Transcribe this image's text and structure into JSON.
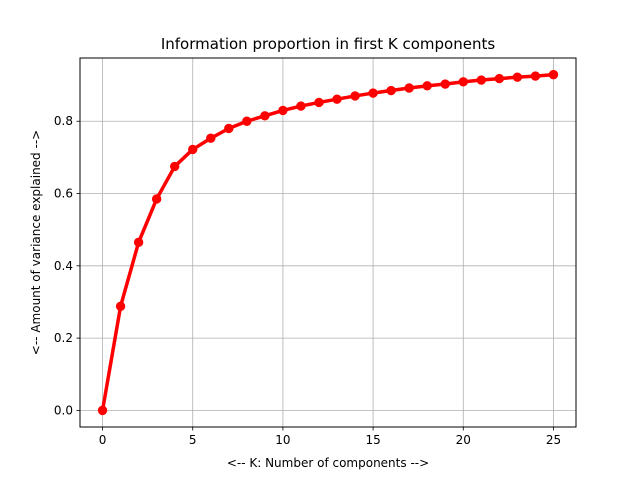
{
  "chart_data": {
    "type": "line",
    "title": "Information proportion in first K components",
    "xlabel": "<-- K: Number of components -->",
    "ylabel": "<-- Amount of variance explained -->",
    "xlim": [
      -1.25,
      26.25
    ],
    "ylim": [
      -0.046,
      0.975
    ],
    "xticks": [
      0,
      5,
      10,
      15,
      20,
      25
    ],
    "yticks": [
      0.0,
      0.2,
      0.4,
      0.6,
      0.8
    ],
    "xtick_labels": [
      "0",
      "5",
      "10",
      "15",
      "20",
      "25"
    ],
    "ytick_labels": [
      "0.0",
      "0.2",
      "0.4",
      "0.6",
      "0.8"
    ],
    "grid": true,
    "color": "#ff0000",
    "series": [
      {
        "x": [
          0,
          1,
          2,
          3,
          4,
          5,
          6,
          7,
          8,
          9,
          10,
          11,
          12,
          13,
          14,
          15,
          16,
          17,
          18,
          19,
          20,
          21,
          22,
          23,
          24,
          25
        ],
        "values": [
          0.0,
          0.288,
          0.465,
          0.585,
          0.675,
          0.722,
          0.753,
          0.78,
          0.8,
          0.815,
          0.83,
          0.842,
          0.852,
          0.861,
          0.87,
          0.878,
          0.885,
          0.892,
          0.898,
          0.903,
          0.909,
          0.914,
          0.918,
          0.922,
          0.925,
          0.929
        ]
      }
    ]
  }
}
